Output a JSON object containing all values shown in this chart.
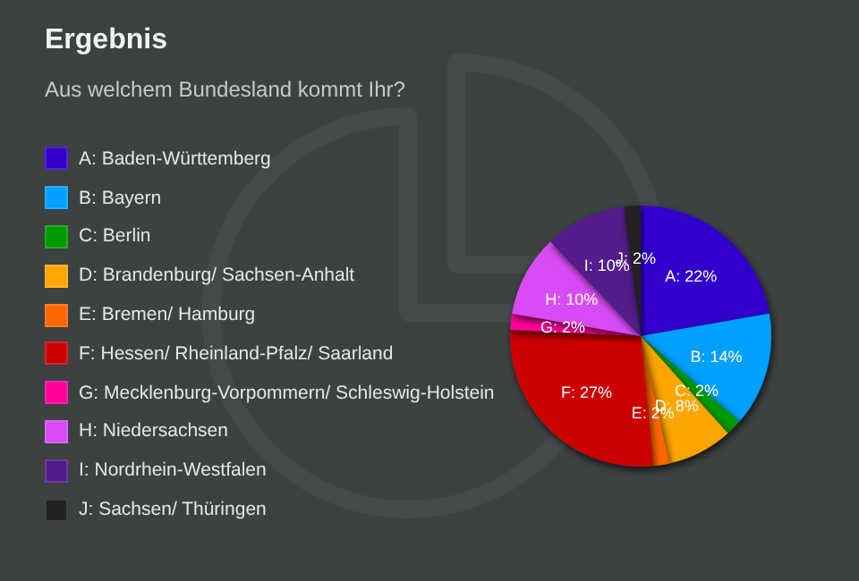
{
  "chart_data": {
    "type": "pie",
    "title": "Ergebnis",
    "subtitle": "Aus welchem Bundesland kommt Ihr?",
    "categories": [
      "A: Baden-Württemberg",
      "B: Bayern",
      "C: Berlin",
      "D: Brandenburg/ Sachsen-Anhalt",
      "E: Bremen/ Hamburg",
      "F: Hessen/ Rheinland-Pfalz/ Saarland",
      "G: Mecklenburg-Vorpommern/ Schleswig-Holstein",
      "H: Niedersachsen",
      "I: Nordrhein-Westfalen",
      "J: Sachsen/ Thüringen"
    ],
    "values": [
      22,
      14,
      2,
      8,
      2,
      27,
      2,
      10,
      10,
      2
    ],
    "value_labels": [
      "A: 22%",
      "B: 14%",
      "C: 2%",
      "D: 8%",
      "E: 2%",
      "F: 27%",
      "G: 2%",
      "H: 10%",
      "I: 10%",
      "J: 2%"
    ],
    "colors": [
      "#3300cc",
      "#00a0ff",
      "#009900",
      "#ffa500",
      "#ff6600",
      "#cc0000",
      "#ff0099",
      "#d94cf5",
      "#521a8a",
      "#222222"
    ],
    "legend": "left"
  }
}
